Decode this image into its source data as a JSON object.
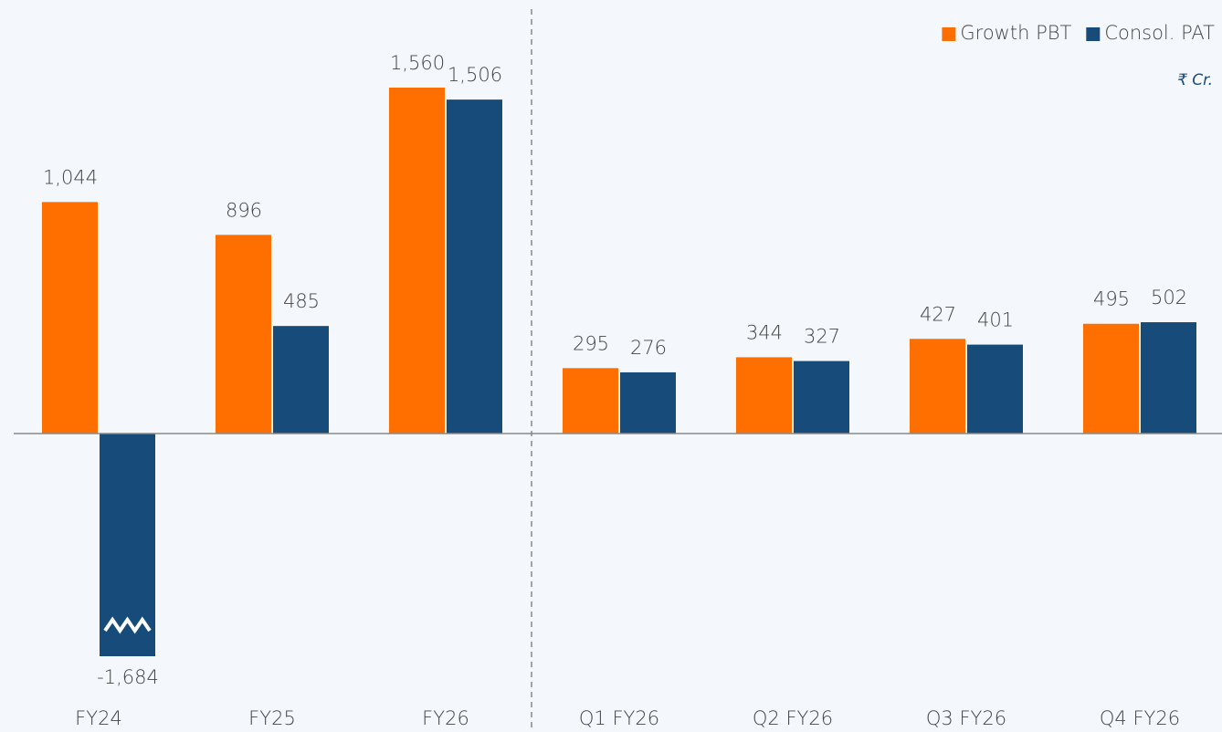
{
  "chart_data": {
    "type": "bar",
    "unit_note": "₹ Cr.",
    "legend": "top-right",
    "categories": [
      "FY24",
      "FY25",
      "FY26",
      "Q1 FY26",
      "Q2 FY26",
      "Q3 FY26",
      "Q4 FY26"
    ],
    "series": [
      {
        "name": "Growth PBT",
        "color": "#ff6f00",
        "values": [
          1044,
          896,
          1560,
          295,
          344,
          427,
          495
        ],
        "value_labels": [
          "1,044",
          "896",
          "1,560",
          "295",
          "344",
          "427",
          "495"
        ]
      },
      {
        "name": "Consol. PAT",
        "color": "#174b7a",
        "values": [
          -1684,
          485,
          1506,
          276,
          327,
          401,
          502
        ],
        "value_labels": [
          "-1,684",
          "485",
          "1,506",
          "276",
          "327",
          "401",
          "502"
        ]
      }
    ]
  }
}
